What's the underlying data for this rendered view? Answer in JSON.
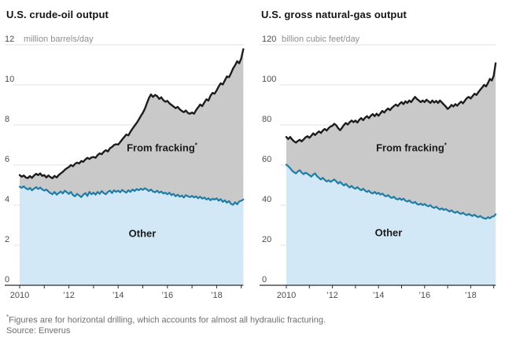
{
  "page": {
    "footnote_marker": "*",
    "footnote": "Figures are for horizontal drilling, which accounts for almost all hydraulic fracturing.",
    "source": "Source: Enverus"
  },
  "colors": {
    "total_line": "#1d1d1d",
    "fracking_fill": "#c9c9c9",
    "other_line": "#1f7ca6",
    "other_fill": "#d3e8f6",
    "grid": "#e0e0e0",
    "axis": "#2b2b2b",
    "tick_label": "#4d4d4d",
    "unit_label": "#8f8f8f"
  },
  "chart_data": [
    {
      "type": "area",
      "title": "U.S. crude-oil output",
      "unit": "million barrels/day",
      "ylim": [
        0,
        12
      ],
      "y_ticks": [
        0,
        2,
        4,
        6,
        8,
        10,
        12
      ],
      "x_start_year": 2010,
      "points_per_year": 12,
      "x_tick_years": [
        2010,
        2011,
        2012,
        2013,
        2014,
        2015,
        2016,
        2017,
        2018,
        2019
      ],
      "x_tick_labels": [
        {
          "year": 2010,
          "text": "2010"
        },
        {
          "year": 2012,
          "text": "’12"
        },
        {
          "year": 2014,
          "text": "’14"
        },
        {
          "year": 2016,
          "text": "’16"
        },
        {
          "year": 2018,
          "text": "’18"
        }
      ],
      "labels": {
        "fracking": "From fracking",
        "fracking_marker": "*",
        "other": "Other"
      },
      "series": [
        {
          "name": "total",
          "values": [
            5.5,
            5.42,
            5.48,
            5.38,
            5.35,
            5.45,
            5.36,
            5.48,
            5.56,
            5.5,
            5.58,
            5.46,
            5.5,
            5.38,
            5.48,
            5.4,
            5.34,
            5.46,
            5.38,
            5.5,
            5.58,
            5.66,
            5.76,
            5.84,
            5.9,
            6.0,
            5.94,
            6.06,
            6.12,
            6.08,
            6.2,
            6.16,
            6.28,
            6.36,
            6.3,
            6.38,
            6.4,
            6.36,
            6.5,
            6.58,
            6.54,
            6.66,
            6.74,
            6.68,
            6.84,
            6.9,
            7.0,
            7.04,
            7.02,
            7.14,
            7.28,
            7.4,
            7.52,
            7.48,
            7.66,
            7.82,
            7.96,
            8.1,
            8.26,
            8.44,
            8.6,
            8.8,
            9.08,
            9.34,
            9.52,
            9.4,
            9.5,
            9.44,
            9.3,
            9.38,
            9.24,
            9.16,
            9.2,
            9.08,
            9.0,
            8.92,
            8.84,
            8.9,
            8.78,
            8.7,
            8.64,
            8.72,
            8.6,
            8.56,
            8.62,
            8.56,
            8.74,
            8.88,
            9.02,
            8.94,
            9.12,
            9.28,
            9.22,
            9.46,
            9.6,
            9.56,
            9.72,
            9.92,
            10.08,
            10.02,
            10.22,
            10.42,
            10.38,
            10.58,
            10.82,
            10.98,
            11.18,
            11.08,
            11.32,
            11.78
          ]
        },
        {
          "name": "other",
          "values": [
            4.92,
            4.86,
            4.94,
            4.84,
            4.78,
            4.86,
            4.74,
            4.82,
            4.9,
            4.8,
            4.88,
            4.78,
            4.72,
            4.78,
            4.68,
            4.6,
            4.54,
            4.66,
            4.52,
            4.6,
            4.68,
            4.58,
            4.72,
            4.64,
            4.56,
            4.66,
            4.5,
            4.44,
            4.56,
            4.48,
            4.4,
            4.52,
            4.6,
            4.46,
            4.66,
            4.54,
            4.62,
            4.52,
            4.66,
            4.56,
            4.7,
            4.6,
            4.54,
            4.66,
            4.72,
            4.6,
            4.74,
            4.66,
            4.72,
            4.64,
            4.76,
            4.68,
            4.62,
            4.74,
            4.66,
            4.78,
            4.7,
            4.8,
            4.74,
            4.82,
            4.76,
            4.84,
            4.78,
            4.7,
            4.78,
            4.68,
            4.64,
            4.72,
            4.62,
            4.68,
            4.58,
            4.62,
            4.54,
            4.62,
            4.5,
            4.56,
            4.44,
            4.52,
            4.42,
            4.48,
            4.38,
            4.5,
            4.44,
            4.4,
            4.46,
            4.38,
            4.44,
            4.34,
            4.42,
            4.32,
            4.38,
            4.28,
            4.34,
            4.24,
            4.32,
            4.28,
            4.34,
            4.22,
            4.3,
            4.16,
            4.24,
            4.12,
            4.2,
            4.06,
            4.02,
            4.14,
            4.04,
            4.18,
            4.22,
            4.28
          ]
        }
      ]
    },
    {
      "type": "area",
      "title": "U.S. gross natural-gas output",
      "unit": "billion cubic feet/day",
      "ylim": [
        0,
        120
      ],
      "y_ticks": [
        0,
        20,
        40,
        60,
        80,
        100,
        120
      ],
      "x_start_year": 2010,
      "points_per_year": 12,
      "x_tick_years": [
        2010,
        2011,
        2012,
        2013,
        2014,
        2015,
        2016,
        2017,
        2018,
        2019
      ],
      "x_tick_labels": [
        {
          "year": 2010,
          "text": "2010"
        },
        {
          "year": 2012,
          "text": "’12"
        },
        {
          "year": 2014,
          "text": "’14"
        },
        {
          "year": 2016,
          "text": "’16"
        },
        {
          "year": 2018,
          "text": "’18"
        }
      ],
      "labels": {
        "fracking": "From fracking",
        "fracking_marker": "*",
        "other": "Other"
      },
      "series": [
        {
          "name": "total",
          "values": [
            74.0,
            73.0,
            74.0,
            72.8,
            71.8,
            71.2,
            72.0,
            72.6,
            71.8,
            72.8,
            73.8,
            74.4,
            73.6,
            74.6,
            75.8,
            75.0,
            76.0,
            76.8,
            76.0,
            77.2,
            78.0,
            77.2,
            78.4,
            79.2,
            79.6,
            80.6,
            79.8,
            78.4,
            77.4,
            78.6,
            80.0,
            81.0,
            80.2,
            81.4,
            82.2,
            81.4,
            82.2,
            81.2,
            82.6,
            83.4,
            82.4,
            83.6,
            84.4,
            83.4,
            84.6,
            85.4,
            84.4,
            85.6,
            84.6,
            85.8,
            87.0,
            86.2,
            87.4,
            88.2,
            87.4,
            88.6,
            89.4,
            90.2,
            89.4,
            90.6,
            91.4,
            90.4,
            91.8,
            91.0,
            92.2,
            91.4,
            92.8,
            94.0,
            93.0,
            92.2,
            91.4,
            92.2,
            91.4,
            92.6,
            91.8,
            91.0,
            92.2,
            91.2,
            92.0,
            91.0,
            92.2,
            91.2,
            90.2,
            89.2,
            88.0,
            88.8,
            90.0,
            89.2,
            90.4,
            89.6,
            90.8,
            91.6,
            90.8,
            92.2,
            93.4,
            94.0,
            93.2,
            94.4,
            95.6,
            95.0,
            96.4,
            97.6,
            98.8,
            100.0,
            99.2,
            101.0,
            103.0,
            102.2,
            104.6,
            110.8
          ]
        },
        {
          "name": "other",
          "values": [
            60.2,
            59.4,
            58.4,
            57.2,
            56.4,
            55.8,
            56.8,
            57.4,
            56.2,
            55.4,
            56.2,
            55.6,
            55.0,
            54.2,
            55.2,
            55.8,
            54.4,
            53.6,
            52.8,
            53.6,
            52.6,
            51.8,
            52.4,
            51.6,
            52.2,
            52.8,
            51.8,
            50.8,
            51.6,
            50.6,
            49.8,
            50.6,
            49.6,
            48.8,
            49.6,
            48.6,
            48.2,
            49.0,
            48.0,
            47.4,
            48.2,
            47.2,
            46.6,
            47.2,
            46.2,
            45.8,
            46.6,
            45.6,
            46.2,
            45.2,
            45.8,
            44.8,
            44.4,
            45.0,
            44.0,
            43.6,
            44.2,
            43.2,
            42.8,
            43.4,
            42.6,
            43.2,
            42.2,
            41.8,
            42.4,
            41.4,
            41.0,
            41.6,
            40.6,
            40.2,
            40.8,
            40.0,
            40.6,
            39.8,
            39.4,
            40.0,
            39.0,
            38.6,
            39.2,
            38.4,
            37.8,
            38.4,
            37.6,
            38.0,
            37.4,
            36.8,
            37.4,
            36.6,
            36.2,
            36.8,
            36.0,
            35.6,
            36.2,
            35.4,
            35.0,
            35.6,
            35.0,
            34.6,
            35.2,
            34.4,
            34.0,
            34.6,
            33.8,
            33.4,
            33.2,
            34.0,
            33.4,
            34.2,
            34.4,
            35.4
          ]
        }
      ]
    }
  ]
}
